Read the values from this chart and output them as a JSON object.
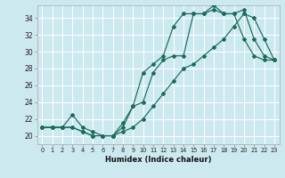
{
  "xlabel": "Humidex (Indice chaleur)",
  "xlim": [
    -0.5,
    23.5
  ],
  "ylim": [
    19.0,
    35.5
  ],
  "yticks": [
    20,
    22,
    24,
    26,
    28,
    30,
    32,
    34
  ],
  "xticks": [
    0,
    1,
    2,
    3,
    4,
    5,
    6,
    7,
    8,
    9,
    10,
    11,
    12,
    13,
    14,
    15,
    16,
    17,
    18,
    19,
    20,
    21,
    22,
    23
  ],
  "bg_color": "#cce9f0",
  "line_color": "#1a6b5a",
  "grid_color": "#ffffff",
  "line1_y": [
    21.0,
    21.0,
    21.0,
    22.5,
    21.0,
    20.5,
    20.0,
    20.0,
    21.5,
    23.5,
    27.5,
    28.5,
    29.5,
    33.0,
    34.5,
    34.5,
    34.5,
    35.5,
    34.5,
    34.5,
    35.0,
    31.5,
    29.5,
    29.0
  ],
  "line2_y": [
    21.0,
    21.0,
    21.0,
    21.0,
    20.5,
    20.0,
    20.0,
    20.0,
    21.0,
    23.5,
    24.0,
    27.5,
    29.0,
    29.5,
    29.5,
    34.5,
    34.5,
    35.0,
    34.5,
    34.5,
    31.5,
    29.5,
    29.0,
    29.0
  ],
  "line3_y": [
    21.0,
    21.0,
    21.0,
    21.0,
    20.5,
    20.0,
    20.0,
    20.0,
    20.5,
    21.0,
    22.0,
    23.5,
    25.0,
    26.5,
    28.0,
    28.5,
    29.5,
    30.5,
    31.5,
    33.0,
    34.5,
    34.0,
    31.5,
    29.0
  ]
}
